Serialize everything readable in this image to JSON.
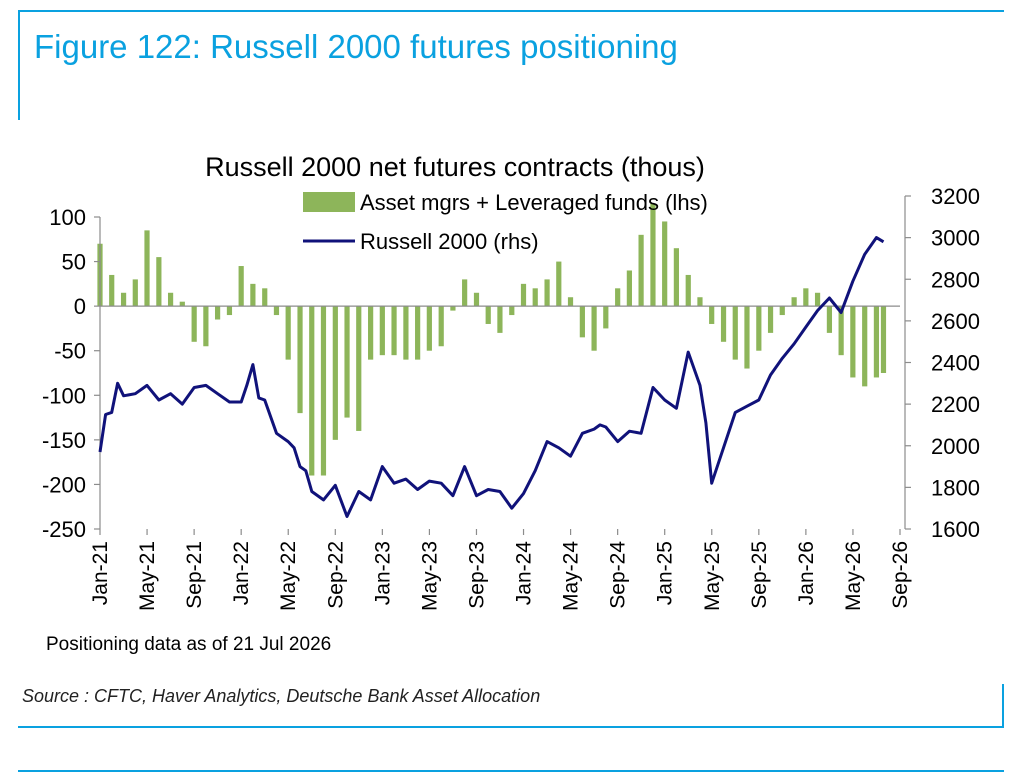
{
  "figure_title": "Figure 122: Russell 2000 futures positioning",
  "note": "Positioning data as of 21 Jul 2026",
  "source": "Source : CFTC, Haver Analytics, Deutsche Bank Asset Allocation",
  "colors": {
    "bars": "#8db55a",
    "line": "#10127a",
    "accent": "#0aa1e0"
  },
  "chart_data": {
    "type": "bar",
    "title": "Russell 2000 net futures contracts  (thous)",
    "x_range": [
      "2021-01",
      "2026-09"
    ],
    "x_ticks": [
      "Jan-21",
      "May-21",
      "Sep-21",
      "Jan-22",
      "May-22",
      "Sep-22",
      "Jan-23",
      "May-23",
      "Sep-23",
      "Jan-24",
      "May-24",
      "Sep-24",
      "Jan-25",
      "May-25",
      "Sep-25",
      "Jan-26",
      "May-26",
      "Sep-26"
    ],
    "y_left": {
      "range": [
        -250,
        100
      ],
      "ticks": [
        "100",
        "50",
        "0",
        "-50",
        "-100",
        "-150",
        "-200",
        "-250"
      ]
    },
    "y_right": {
      "range": [
        1600,
        3200
      ],
      "ticks": [
        "3200",
        "3000",
        "2800",
        "2600",
        "2400",
        "2200",
        "2000",
        "1800",
        "1600"
      ]
    },
    "legend": {
      "placement": "top-center"
    },
    "series": [
      {
        "name": "Asset mgrs + Leveraged funds (lhs)",
        "type": "bar",
        "axis": "left",
        "x": [
          2021.0,
          2021.083,
          2021.167,
          2021.25,
          2021.333,
          2021.417,
          2021.5,
          2021.583,
          2021.667,
          2021.75,
          2021.833,
          2021.917,
          2022.0,
          2022.083,
          2022.167,
          2022.25,
          2022.333,
          2022.417,
          2022.5,
          2022.583,
          2022.667,
          2022.75,
          2022.833,
          2022.917,
          2023.0,
          2023.083,
          2023.167,
          2023.25,
          2023.333,
          2023.417,
          2023.5,
          2023.583,
          2023.667,
          2023.75,
          2023.833,
          2023.917,
          2024.0,
          2024.083,
          2024.167,
          2024.25,
          2024.333,
          2024.417,
          2024.5,
          2024.583,
          2024.667,
          2024.75,
          2024.833,
          2024.917,
          2025.0,
          2025.083,
          2025.167,
          2025.25,
          2025.333,
          2025.417,
          2025.5,
          2025.583,
          2025.667,
          2025.75,
          2025.833,
          2025.917,
          2026.0,
          2026.083,
          2026.167,
          2026.25,
          2026.333,
          2026.417,
          2026.5,
          2026.55
        ],
        "values": [
          70,
          35,
          15,
          30,
          85,
          55,
          15,
          5,
          -40,
          -45,
          -15,
          -10,
          45,
          25,
          20,
          -10,
          -60,
          -120,
          -190,
          -190,
          -150,
          -125,
          -140,
          -60,
          -55,
          -55,
          -60,
          -60,
          -50,
          -45,
          -5,
          30,
          15,
          -20,
          -30,
          -10,
          25,
          20,
          30,
          50,
          10,
          -35,
          -50,
          -25,
          20,
          40,
          80,
          115,
          95,
          65,
          35,
          10,
          -20,
          -40,
          -60,
          -70,
          -50,
          -30,
          -10,
          10,
          20,
          15,
          -30,
          -55,
          -80,
          -90,
          -80,
          -75
        ]
      },
      {
        "name": "Russell 2000 (rhs)",
        "type": "line",
        "axis": "right",
        "x": [
          2021.0,
          2021.04,
          2021.083,
          2021.125,
          2021.167,
          2021.25,
          2021.333,
          2021.417,
          2021.5,
          2021.583,
          2021.667,
          2021.75,
          2021.833,
          2021.917,
          2022.0,
          2022.04,
          2022.083,
          2022.125,
          2022.167,
          2022.25,
          2022.333,
          2022.375,
          2022.417,
          2022.458,
          2022.5,
          2022.583,
          2022.667,
          2022.75,
          2022.833,
          2022.917,
          2023.0,
          2023.083,
          2023.167,
          2023.25,
          2023.333,
          2023.417,
          2023.5,
          2023.583,
          2023.667,
          2023.75,
          2023.833,
          2023.917,
          2024.0,
          2024.083,
          2024.167,
          2024.25,
          2024.333,
          2024.417,
          2024.5,
          2024.542,
          2024.583,
          2024.667,
          2024.75,
          2024.833,
          2024.917,
          2025.0,
          2025.083,
          2025.167,
          2025.25,
          2025.292,
          2025.333,
          2025.417,
          2025.5,
          2025.583,
          2025.667,
          2025.75,
          2025.833,
          2025.917,
          2026.0,
          2026.083,
          2026.167,
          2026.25,
          2026.333,
          2026.417,
          2026.5,
          2026.55
        ],
        "values": [
          1970,
          2150,
          2160,
          2300,
          2240,
          2250,
          2290,
          2220,
          2250,
          2200,
          2280,
          2290,
          2250,
          2210,
          2210,
          2290,
          2390,
          2230,
          2220,
          2060,
          2020,
          1990,
          1900,
          1880,
          1780,
          1740,
          1810,
          1660,
          1780,
          1740,
          1900,
          1820,
          1840,
          1790,
          1830,
          1820,
          1760,
          1900,
          1760,
          1790,
          1780,
          1700,
          1770,
          1880,
          2020,
          1990,
          1950,
          2060,
          2080,
          2100,
          2090,
          2020,
          2070,
          2060,
          2280,
          2220,
          2180,
          2450,
          2290,
          2110,
          1820,
          1990,
          2160,
          2190,
          2220,
          2340,
          2420,
          2490,
          2570,
          2650,
          2710,
          2640,
          2790,
          2920,
          3000,
          2980
        ]
      }
    ]
  }
}
